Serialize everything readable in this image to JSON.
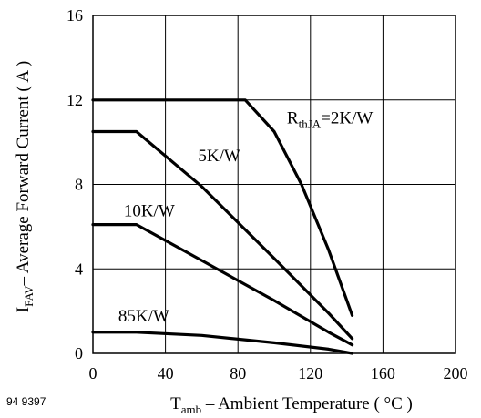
{
  "chart_data": {
    "type": "line",
    "figure_id": "94 9397",
    "xlabel": {
      "main": "T",
      "sub": "amb",
      "rest": " – Ambient Temperature ( °C )"
    },
    "ylabel": {
      "main": "I",
      "sub": "FAV",
      "rest": "– Average Forward Current ( A )"
    },
    "xlim": [
      0,
      200
    ],
    "ylim": [
      0,
      16
    ],
    "xticks": [
      "0",
      "40",
      "80",
      "120",
      "160",
      "200"
    ],
    "yticks": [
      "0",
      "4",
      "8",
      "12",
      "16"
    ],
    "xtick_values": [
      0,
      40,
      80,
      120,
      160,
      200
    ],
    "ytick_values": [
      0,
      4,
      8,
      12,
      16
    ],
    "grid": true,
    "series": [
      {
        "name": "RthJA=2K/W",
        "label": {
          "main": "R",
          "sub": "thJA",
          "rest": "=2K/W"
        },
        "label_at": [
          107,
          10.9
        ],
        "points": [
          [
            0,
            12.0
          ],
          [
            84,
            12.0
          ],
          [
            100,
            10.5
          ],
          [
            115,
            8.0
          ],
          [
            130,
            4.9
          ],
          [
            143,
            1.8
          ]
        ]
      },
      {
        "name": "5K/W",
        "label": {
          "main": "",
          "sub": "",
          "rest": "5K/W"
        },
        "label_at": [
          58,
          9.1
        ],
        "points": [
          [
            0,
            10.5
          ],
          [
            24,
            10.5
          ],
          [
            60,
            7.9
          ],
          [
            100,
            4.5
          ],
          [
            130,
            1.9
          ],
          [
            143,
            0.7
          ]
        ]
      },
      {
        "name": "10K/W",
        "label": {
          "main": "",
          "sub": "",
          "rest": "10K/W"
        },
        "label_at": [
          17,
          6.5
        ],
        "points": [
          [
            0,
            6.1
          ],
          [
            24,
            6.1
          ],
          [
            60,
            4.4
          ],
          [
            100,
            2.5
          ],
          [
            130,
            1.0
          ],
          [
            143,
            0.4
          ]
        ]
      },
      {
        "name": "85K/W",
        "label": {
          "main": "",
          "sub": "",
          "rest": "85K/W"
        },
        "label_at": [
          14,
          1.5
        ],
        "points": [
          [
            0,
            1.0
          ],
          [
            24,
            1.0
          ],
          [
            60,
            0.85
          ],
          [
            100,
            0.5
          ],
          [
            130,
            0.2
          ],
          [
            143,
            0.0
          ]
        ]
      }
    ]
  }
}
